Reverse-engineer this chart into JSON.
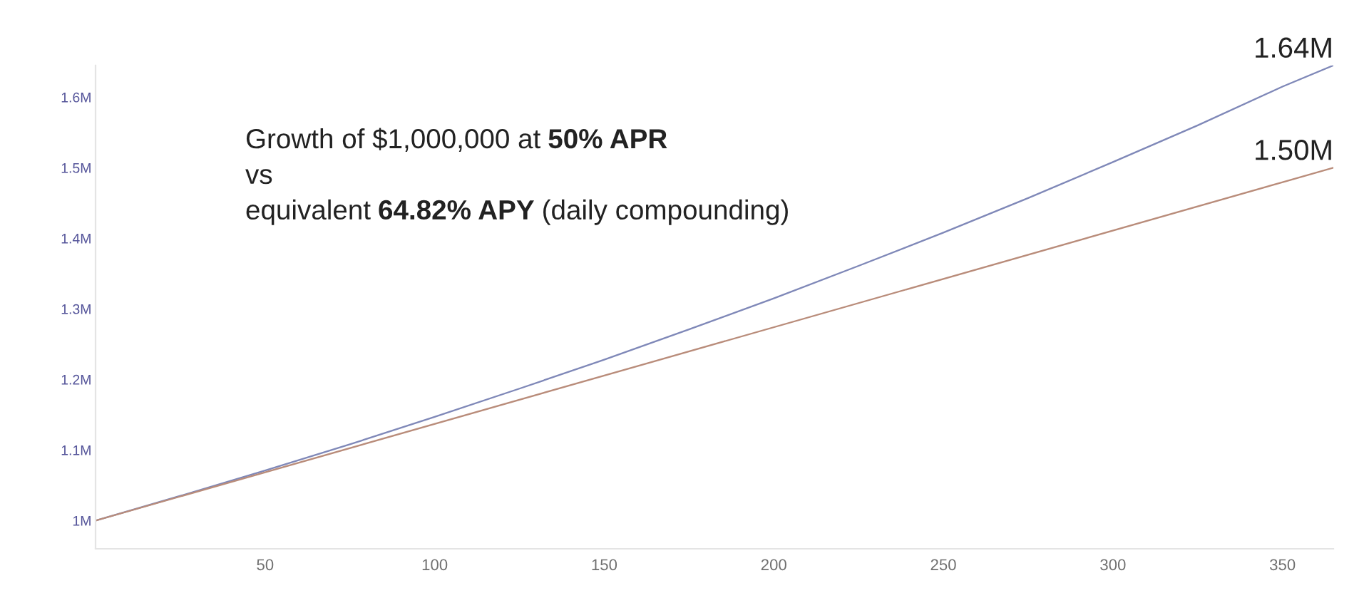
{
  "chart_data": {
    "type": "line",
    "title": "Growth of $1,000,000 at 50% APR\nvs\nequivalent 64.82% APY (daily compounding)",
    "series": [
      {
        "color": "#7f88b8",
        "x": [
          0,
          25,
          50,
          75,
          100,
          125,
          150,
          175,
          200,
          225,
          250,
          275,
          300,
          325,
          350,
          365
        ],
        "values": [
          1000000,
          1035000,
          1071000,
          1108000,
          1147000,
          1187000,
          1228000,
          1271000,
          1315000,
          1361000,
          1408000,
          1457000,
          1508000,
          1560000,
          1615000,
          1645000
        ]
      },
      {
        "color": "#b98c7a",
        "x": [
          0,
          365
        ],
        "values": [
          1000000,
          1500000
        ]
      }
    ],
    "annotations": [
      {
        "text": "1.64M",
        "x": 365,
        "y": 1645000
      },
      {
        "text": "1.50M",
        "x": 365,
        "y": 1500000
      }
    ],
    "xlim": [
      0,
      365
    ],
    "xticks": [
      50,
      100,
      150,
      200,
      250,
      300,
      350
    ],
    "ylim": [
      960000,
      1645000
    ],
    "yticks": [
      {
        "value": 1000000,
        "label": "1M"
      },
      {
        "value": 1100000,
        "label": "1.1M"
      },
      {
        "value": 1200000,
        "label": "1.2M"
      },
      {
        "value": 1300000,
        "label": "1.3M"
      },
      {
        "value": 1400000,
        "label": "1.4M"
      },
      {
        "value": 1500000,
        "label": "1.5M"
      },
      {
        "value": 1600000,
        "label": "1.6M"
      }
    ]
  }
}
